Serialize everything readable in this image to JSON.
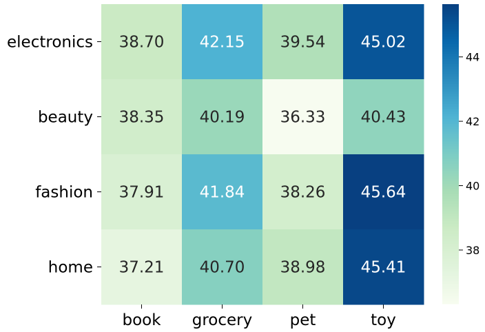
{
  "chart_data": {
    "type": "heatmap",
    "title": "",
    "xlabel": "",
    "ylabel": "",
    "x_categories": [
      "book",
      "grocery",
      "pet",
      "toy"
    ],
    "y_categories": [
      "electronics",
      "beauty",
      "fashion",
      "home"
    ],
    "values": [
      [
        38.7,
        42.15,
        39.54,
        45.02
      ],
      [
        38.35,
        40.19,
        36.33,
        40.43
      ],
      [
        37.91,
        41.84,
        38.26,
        45.64
      ],
      [
        37.21,
        40.7,
        38.98,
        45.41
      ]
    ],
    "value_labels": [
      [
        "38.70",
        "42.15",
        "39.54",
        "45.02"
      ],
      [
        "38.35",
        "40.19",
        "36.33",
        "40.43"
      ],
      [
        "37.91",
        "41.84",
        "38.26",
        "45.64"
      ],
      [
        "37.21",
        "40.70",
        "38.98",
        "45.41"
      ]
    ],
    "colormap": "GnBu",
    "colorbar": {
      "vmin": 36.33,
      "vmax": 45.64,
      "ticks": [
        "38",
        "40",
        "42",
        "44"
      ]
    },
    "grid": false,
    "legend": "colorbar-right"
  }
}
